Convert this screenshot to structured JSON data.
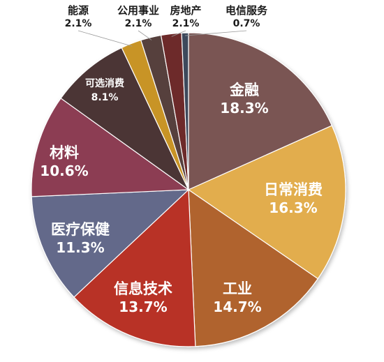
{
  "chart_data": {
    "type": "pie",
    "title": "",
    "categories": [
      "金融",
      "日常消费",
      "工业",
      "信息技术",
      "医疗保健",
      "材料",
      "可选消费",
      "能源",
      "公用事业",
      "房地产",
      "电信服务"
    ],
    "values": [
      18.3,
      16.3,
      14.7,
      13.7,
      11.3,
      10.6,
      8.1,
      2.1,
      2.1,
      2.1,
      0.7
    ],
    "value_labels": [
      "18.3%",
      "16.3%",
      "14.7%",
      "13.7%",
      "11.3%",
      "10.6%",
      "8.1%",
      "2.1%",
      "2.1%",
      "2.1%",
      "0.7%"
    ],
    "colors": [
      "#7a5452",
      "#e2ad4d",
      "#b0642e",
      "#b83127",
      "#64698a",
      "#8c3c53",
      "#4b3535",
      "#c89427",
      "#57403c",
      "#6d2a2a",
      "#3d4a5c"
    ],
    "start_angle_deg": 0,
    "direction": "clockwise",
    "legend": "none",
    "label_style": "inside-large-slices, outside-small-slices"
  }
}
